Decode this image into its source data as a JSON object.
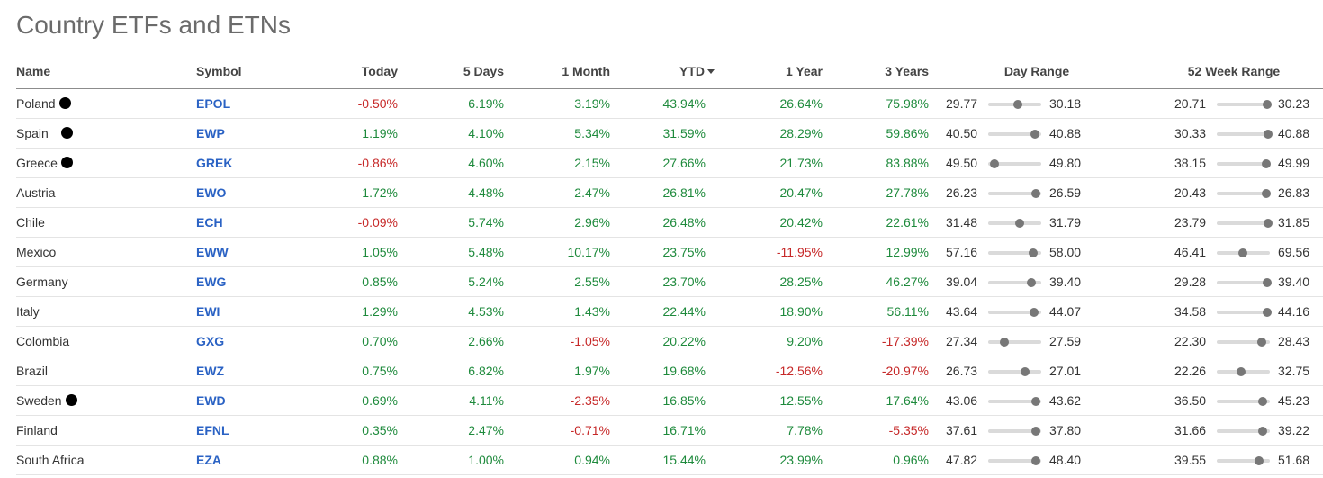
{
  "page": {
    "title": "Country ETFs and ETNs"
  },
  "columns": {
    "name": "Name",
    "symbol": "Symbol",
    "today": "Today",
    "five_days": "5 Days",
    "one_month": "1 Month",
    "ytd": "YTD",
    "one_year": "1 Year",
    "three_years": "3 Years",
    "day_range": "Day Range",
    "week52_range": "52 Week Range"
  },
  "sort": {
    "column": "ytd",
    "direction": "descending"
  },
  "colors": {
    "positive": "#1e8a3c",
    "negative": "#c62828",
    "link": "#2a62c4"
  },
  "rows": [
    {
      "name": "Poland",
      "dot": true,
      "symbol": "EPOL",
      "today": "-0.50%",
      "five_days": "6.19%",
      "one_month": "3.19%",
      "ytd": "43.94%",
      "one_year": "26.64%",
      "three_years": "75.98%",
      "day_low": "29.77",
      "day_high": "30.18",
      "day_pos": 0.56,
      "wk_low": "20.71",
      "wk_high": "30.23",
      "wk_pos": 0.95
    },
    {
      "name": "Spain",
      "dot": true,
      "symbol": "EWP",
      "today": "1.19%",
      "five_days": "4.10%",
      "one_month": "5.34%",
      "ytd": "31.59%",
      "one_year": "28.29%",
      "three_years": "59.86%",
      "day_low": "40.50",
      "day_high": "40.88",
      "day_pos": 0.88,
      "wk_low": "30.33",
      "wk_high": "40.88",
      "wk_pos": 0.97
    },
    {
      "name": "Greece",
      "dot": true,
      "symbol": "GREK",
      "today": "-0.86%",
      "five_days": "4.60%",
      "one_month": "2.15%",
      "ytd": "27.66%",
      "one_year": "21.73%",
      "three_years": "83.88%",
      "day_low": "49.50",
      "day_high": "49.80",
      "day_pos": 0.12,
      "wk_low": "38.15",
      "wk_high": "49.99",
      "wk_pos": 0.93
    },
    {
      "name": "Austria",
      "dot": false,
      "symbol": "EWO",
      "today": "1.72%",
      "five_days": "4.48%",
      "one_month": "2.47%",
      "ytd": "26.81%",
      "one_year": "20.47%",
      "three_years": "27.78%",
      "day_low": "26.23",
      "day_high": "26.59",
      "day_pos": 0.9,
      "wk_low": "20.43",
      "wk_high": "26.83",
      "wk_pos": 0.94
    },
    {
      "name": "Chile",
      "dot": false,
      "symbol": "ECH",
      "today": "-0.09%",
      "five_days": "5.74%",
      "one_month": "2.96%",
      "ytd": "26.48%",
      "one_year": "20.42%",
      "three_years": "22.61%",
      "day_low": "31.48",
      "day_high": "31.79",
      "day_pos": 0.59,
      "wk_low": "23.79",
      "wk_high": "31.85",
      "wk_pos": 0.96
    },
    {
      "name": "Mexico",
      "dot": false,
      "symbol": "EWW",
      "today": "1.05%",
      "five_days": "5.48%",
      "one_month": "10.17%",
      "ytd": "23.75%",
      "one_year": "-11.95%",
      "three_years": "12.99%",
      "day_low": "57.16",
      "day_high": "58.00",
      "day_pos": 0.85,
      "wk_low": "46.41",
      "wk_high": "69.56",
      "wk_pos": 0.49
    },
    {
      "name": "Germany",
      "dot": false,
      "symbol": "EWG",
      "today": "0.85%",
      "five_days": "5.24%",
      "one_month": "2.55%",
      "ytd": "23.70%",
      "one_year": "28.25%",
      "three_years": "46.27%",
      "day_low": "39.04",
      "day_high": "39.40",
      "day_pos": 0.81,
      "wk_low": "29.28",
      "wk_high": "39.40",
      "wk_pos": 0.95
    },
    {
      "name": "Italy",
      "dot": false,
      "symbol": "EWI",
      "today": "1.29%",
      "five_days": "4.53%",
      "one_month": "1.43%",
      "ytd": "22.44%",
      "one_year": "18.90%",
      "three_years": "56.11%",
      "day_low": "43.64",
      "day_high": "44.07",
      "day_pos": 0.86,
      "wk_low": "34.58",
      "wk_high": "44.16",
      "wk_pos": 0.95
    },
    {
      "name": "Colombia",
      "dot": false,
      "symbol": "GXG",
      "today": "0.70%",
      "five_days": "2.66%",
      "one_month": "-1.05%",
      "ytd": "20.22%",
      "one_year": "9.20%",
      "three_years": "-17.39%",
      "day_low": "27.34",
      "day_high": "27.59",
      "day_pos": 0.3,
      "wk_low": "22.30",
      "wk_high": "28.43",
      "wk_pos": 0.85
    },
    {
      "name": "Brazil",
      "dot": false,
      "symbol": "EWZ",
      "today": "0.75%",
      "five_days": "6.82%",
      "one_month": "1.97%",
      "ytd": "19.68%",
      "one_year": "-12.56%",
      "three_years": "-20.97%",
      "day_low": "26.73",
      "day_high": "27.01",
      "day_pos": 0.7,
      "wk_low": "22.26",
      "wk_high": "32.75",
      "wk_pos": 0.45
    },
    {
      "name": "Sweden",
      "dot": true,
      "symbol": "EWD",
      "today": "0.69%",
      "five_days": "4.11%",
      "one_month": "-2.35%",
      "ytd": "16.85%",
      "one_year": "12.55%",
      "three_years": "17.64%",
      "day_low": "43.06",
      "day_high": "43.62",
      "day_pos": 0.9,
      "wk_low": "36.50",
      "wk_high": "45.23",
      "wk_pos": 0.86
    },
    {
      "name": "Finland",
      "dot": false,
      "symbol": "EFNL",
      "today": "0.35%",
      "five_days": "2.47%",
      "one_month": "-0.71%",
      "ytd": "16.71%",
      "one_year": "7.78%",
      "three_years": "-5.35%",
      "day_low": "37.61",
      "day_high": "37.80",
      "day_pos": 0.9,
      "wk_low": "31.66",
      "wk_high": "39.22",
      "wk_pos": 0.86
    },
    {
      "name": "South Africa",
      "dot": false,
      "symbol": "EZA",
      "today": "0.88%",
      "five_days": "1.00%",
      "one_month": "0.94%",
      "ytd": "15.44%",
      "one_year": "23.99%",
      "three_years": "0.96%",
      "day_low": "47.82",
      "day_high": "48.40",
      "day_pos": 0.9,
      "wk_low": "39.55",
      "wk_high": "51.68",
      "wk_pos": 0.8
    }
  ]
}
